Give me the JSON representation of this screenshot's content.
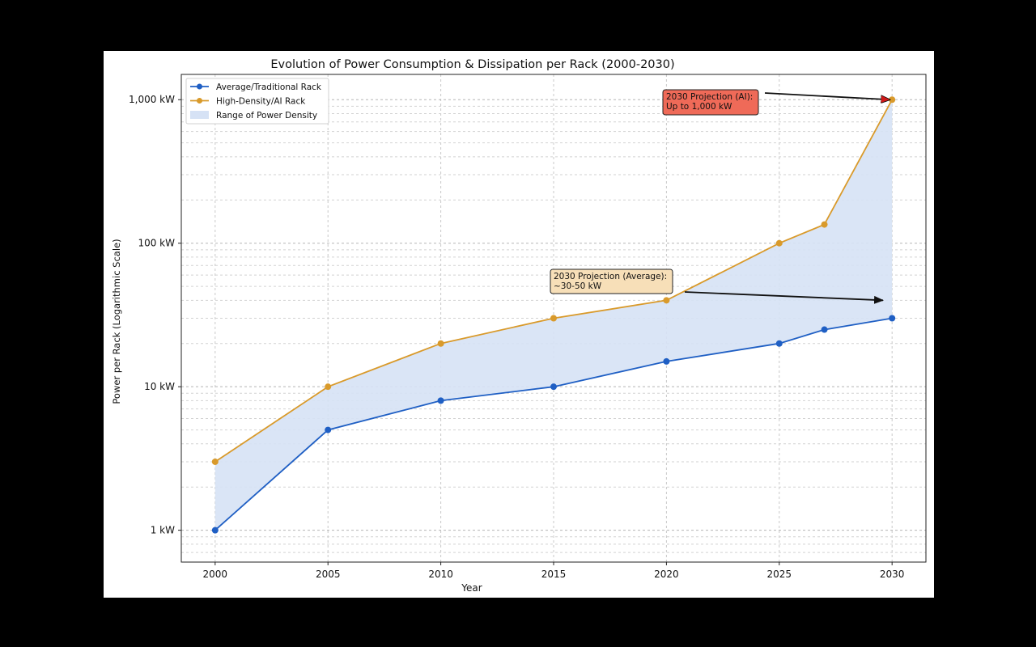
{
  "colors": {
    "page_background": "#000000",
    "figure_background": "#ffffff",
    "average_series": "#1f5fc4",
    "high_density_series": "#d99a2b",
    "range_fill": "#d6e2f5",
    "grid": "#c8c8c8",
    "ai_annotation_fill": "#ef6a58",
    "ai_arrow": "#d01818",
    "average_annotation_fill": "#f7dfb8",
    "average_arrow": "#111111"
  },
  "chart_data": {
    "type": "line",
    "title": "Evolution of Power Consumption & Dissipation per Rack (2000-2030)",
    "xlabel": "Year",
    "ylabel": "Power per Rack (Logarithmic Scale)",
    "yscale": "log",
    "xlim": [
      1998.5,
      2031.5
    ],
    "ylim": [
      0.6,
      1500
    ],
    "grid": true,
    "legend_position": "top-left",
    "x_ticks": [
      2000,
      2005,
      2010,
      2015,
      2020,
      2025,
      2030
    ],
    "x_tick_labels": [
      "2000",
      "2005",
      "2010",
      "2015",
      "2020",
      "2025",
      "2030"
    ],
    "y_ticks": [
      1,
      10,
      100,
      1000
    ],
    "y_tick_labels": [
      "1 kW",
      "10 kW",
      "100 kW",
      "1,000 kW"
    ],
    "x": [
      2000,
      2005,
      2010,
      2015,
      2020,
      2025,
      2027,
      2030
    ],
    "series": [
      {
        "name": "Average/Traditional Rack",
        "values": [
          1,
          5,
          8,
          10,
          15,
          20,
          25,
          30
        ]
      },
      {
        "name": "High-Density/AI Rack",
        "values": [
          3,
          10,
          20,
          30,
          40,
          100,
          135,
          1000
        ]
      }
    ],
    "fill_between": {
      "name": "Range of Power Density",
      "lower": "Average/Traditional Rack",
      "upper": "High-Density/AI Rack"
    },
    "annotations": [
      {
        "id": "ai",
        "lines": [
          "2030 Projection (AI):",
          "Up to 1,000 kW"
        ],
        "arrow_to": {
          "x": 2029.9,
          "y": 1000
        }
      },
      {
        "id": "average",
        "lines": [
          "2030 Projection (Average):",
          "~30-50 kW"
        ],
        "arrow_to": {
          "x": 2029.6,
          "y": 40
        }
      }
    ]
  }
}
